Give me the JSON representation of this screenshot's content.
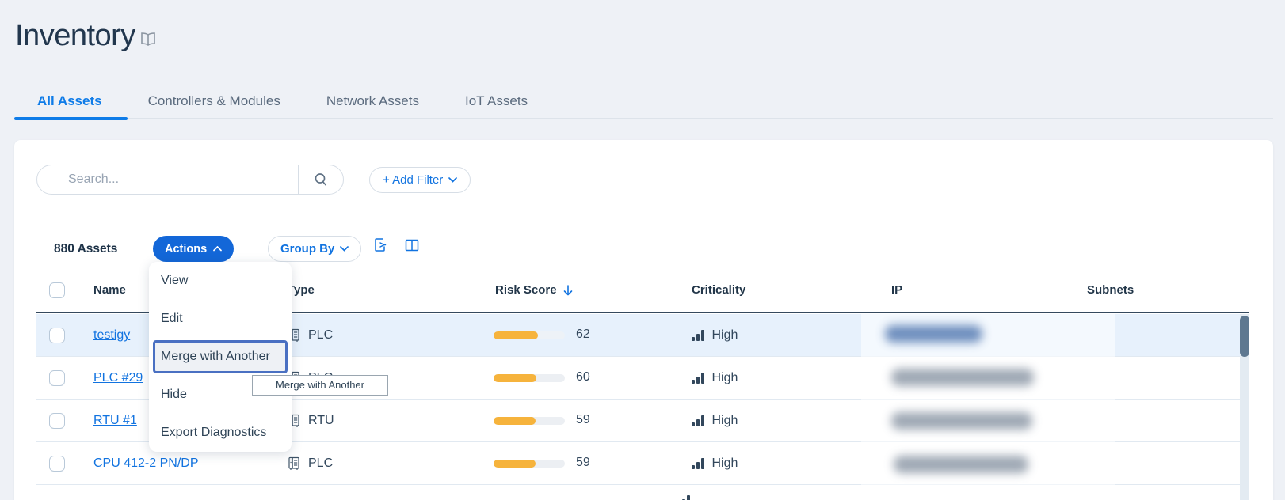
{
  "page": {
    "title": "Inventory"
  },
  "tabs": [
    {
      "label": "All Assets",
      "active": true
    },
    {
      "label": "Controllers & Modules",
      "active": false
    },
    {
      "label": "Network Assets",
      "active": false
    },
    {
      "label": "IoT Assets",
      "active": false
    }
  ],
  "toolbar": {
    "search_placeholder": "Search...",
    "add_filter_label": "+ Add Filter",
    "assets_count": "880 Assets",
    "actions_label": "Actions",
    "group_by_label": "Group By"
  },
  "menu": {
    "items": [
      "View",
      "Edit",
      "Merge with Another",
      "Hide",
      "Export Diagnostics"
    ],
    "focused_item": "Merge with Another"
  },
  "tooltip": {
    "text": "Merge with Another"
  },
  "table": {
    "headers": {
      "name": "Name",
      "type": "Type",
      "risk_score": "Risk Score",
      "criticality": "Criticality",
      "ip": "IP",
      "subnets": "Subnets"
    },
    "sort": {
      "column": "Risk Score",
      "direction": "desc"
    },
    "rows": [
      {
        "name": "testigy",
        "type": "PLC",
        "risk": 62,
        "criticality": "High",
        "highlighted": true
      },
      {
        "name": "PLC #29",
        "type": "PLC",
        "risk": 60,
        "criticality": "High",
        "highlighted": false
      },
      {
        "name": "RTU #1",
        "type": "RTU",
        "risk": 59,
        "criticality": "High",
        "highlighted": false
      },
      {
        "name": "CPU 412-2 PN/DP",
        "type": "PLC",
        "risk": 59,
        "criticality": "High",
        "highlighted": false
      }
    ]
  },
  "colors": {
    "accent_blue": "#1173e0",
    "button_blue": "#1367d8",
    "risk_bar_orange": "#f6b33c",
    "row_highlight": "#e7f1fc",
    "header_line": "#34495e",
    "title_navy": "#22374e"
  }
}
